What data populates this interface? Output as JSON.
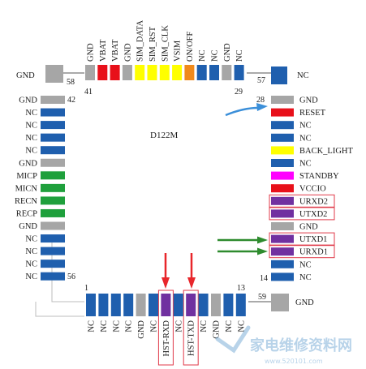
{
  "chip_label": "D122M",
  "colors": {
    "grey": "#a6a6a6",
    "blue": "#1f5fae",
    "red": "#e8101a",
    "yellow": "#ffff00",
    "orange": "#f08a1c",
    "green": "#1fa03c",
    "magenta": "#ff00ff",
    "purple": "#7030a0",
    "highlight": "#e03a4a",
    "arrow_blue": "#3b8fd9",
    "arrow_green": "#2e8b2e",
    "arrow_red": "#e8262b"
  },
  "top_pins": [
    {
      "label": "GND",
      "color": "grey"
    },
    {
      "label": "VBAT",
      "color": "red"
    },
    {
      "label": "VBAT",
      "color": "red"
    },
    {
      "label": "GND",
      "color": "grey"
    },
    {
      "label": "SIM_DATA",
      "color": "yellow"
    },
    {
      "label": "SIM_RST",
      "color": "yellow"
    },
    {
      "label": "SIM_CLK",
      "color": "yellow"
    },
    {
      "label": "VSIM",
      "color": "yellow"
    },
    {
      "label": "ON/OFF",
      "color": "orange"
    },
    {
      "label": "NC",
      "color": "blue"
    },
    {
      "label": "NC",
      "color": "blue"
    },
    {
      "label": "GND",
      "color": "grey"
    },
    {
      "label": "NC",
      "color": "blue"
    }
  ],
  "top_numbers": {
    "corner_left": "58",
    "first": "41",
    "last": "29",
    "corner_right": "57"
  },
  "left_pins": [
    {
      "label": "GND",
      "color": "grey"
    },
    {
      "label": "NC",
      "color": "blue"
    },
    {
      "label": "NC",
      "color": "blue"
    },
    {
      "label": "NC",
      "color": "blue"
    },
    {
      "label": "NC",
      "color": "blue"
    },
    {
      "label": "GND",
      "color": "grey"
    },
    {
      "label": "MICP",
      "color": "green"
    },
    {
      "label": "MICN",
      "color": "green"
    },
    {
      "label": "RECN",
      "color": "green"
    },
    {
      "label": "RECP",
      "color": "green"
    },
    {
      "label": "GND",
      "color": "grey"
    },
    {
      "label": "NC",
      "color": "blue"
    },
    {
      "label": "NC",
      "color": "blue"
    },
    {
      "label": "NC",
      "color": "blue"
    },
    {
      "label": "NC",
      "color": "blue"
    }
  ],
  "left_numbers": {
    "first": "42",
    "last": "56"
  },
  "right_pins": [
    {
      "label": "GND",
      "color": "grey",
      "boxed": false
    },
    {
      "label": "RESET",
      "color": "red",
      "boxed": false
    },
    {
      "label": "NC",
      "color": "blue",
      "boxed": false
    },
    {
      "label": "NC",
      "color": "blue",
      "boxed": false
    },
    {
      "label": "BACK_LIGHT",
      "color": "yellow",
      "boxed": false
    },
    {
      "label": "NC",
      "color": "blue",
      "boxed": false
    },
    {
      "label": "STANDBY",
      "color": "magenta",
      "boxed": false
    },
    {
      "label": "VCCIO",
      "color": "red",
      "boxed": false
    },
    {
      "label": "URXD2",
      "color": "purple",
      "boxed": true
    },
    {
      "label": "UTXD2",
      "color": "purple",
      "boxed": true
    },
    {
      "label": "GND",
      "color": "grey",
      "boxed": false
    },
    {
      "label": "UTXD1",
      "color": "purple",
      "boxed": true
    },
    {
      "label": "URXD1",
      "color": "purple",
      "boxed": true
    },
    {
      "label": "NC",
      "color": "blue",
      "boxed": false
    },
    {
      "label": "NC",
      "color": "blue",
      "boxed": false
    }
  ],
  "right_numbers": {
    "first": "28",
    "last": "14"
  },
  "corner_labels": {
    "top_left": "GND",
    "top_right": "NC",
    "bottom_right": "GND",
    "bottom_right_number": "59"
  },
  "bottom_pins": [
    {
      "label": "NC",
      "color": "blue",
      "boxed": false
    },
    {
      "label": "NC",
      "color": "blue",
      "boxed": false
    },
    {
      "label": "NC",
      "color": "blue",
      "boxed": false
    },
    {
      "label": "NC",
      "color": "blue",
      "boxed": false
    },
    {
      "label": "GND",
      "color": "grey",
      "boxed": false
    },
    {
      "label": "NC",
      "color": "blue",
      "boxed": false
    },
    {
      "label": "HST-RXD",
      "color": "purple",
      "boxed": true
    },
    {
      "label": "NC",
      "color": "blue",
      "boxed": false
    },
    {
      "label": "HST-TXD",
      "color": "purple",
      "boxed": true
    },
    {
      "label": "NC",
      "color": "blue",
      "boxed": false
    },
    {
      "label": "GND",
      "color": "grey",
      "boxed": false
    },
    {
      "label": "NC",
      "color": "blue",
      "boxed": false
    },
    {
      "label": "NC",
      "color": "blue",
      "boxed": false
    }
  ],
  "bottom_numbers": {
    "first": "1",
    "last": "13"
  },
  "watermark": {
    "main": "家电维修资料网",
    "url": "www.520101.com"
  }
}
